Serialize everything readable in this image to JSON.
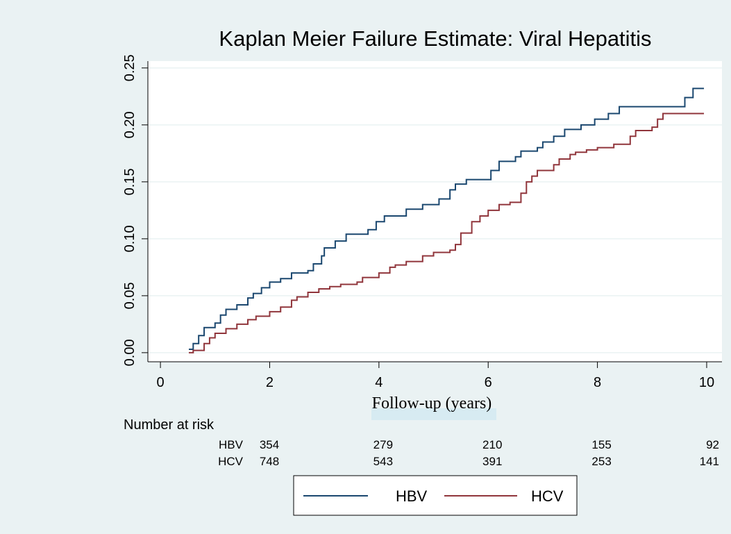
{
  "chart_data": {
    "type": "line",
    "step": true,
    "title": "Kaplan Meier Failure Estimate: Viral Hepatitis",
    "x_label": "Follow-up (years)",
    "xlim": [
      -0.23,
      10.28
    ],
    "ylim": [
      -0.008,
      0.256
    ],
    "xticks": [
      0,
      2,
      4,
      6,
      8,
      10
    ],
    "yticks": [
      {
        "value": 0,
        "label": "0.00"
      },
      {
        "value": 0.05,
        "label": "0.05"
      },
      {
        "value": 0.1,
        "label": "0.10"
      },
      {
        "value": 0.15,
        "label": "0.15"
      },
      {
        "value": 0.2,
        "label": "0.20"
      },
      {
        "value": 0.25,
        "label": "0.25"
      }
    ],
    "grid": true,
    "series": [
      {
        "name": "HBV",
        "color": "#1a476f",
        "x": [
          0.52,
          0.6,
          0.7,
          0.8,
          1.0,
          1.1,
          1.2,
          1.4,
          1.6,
          1.7,
          1.85,
          2.0,
          2.2,
          2.4,
          2.7,
          2.8,
          2.95,
          3.0,
          3.2,
          3.4,
          3.8,
          3.95,
          4.1,
          4.5,
          4.8,
          5.1,
          5.3,
          5.4,
          5.6,
          6.05,
          6.2,
          6.5,
          6.6,
          6.9,
          7.0,
          7.2,
          7.4,
          7.7,
          7.95,
          8.2,
          8.4,
          9.6,
          9.75,
          9.95
        ],
        "values": [
          0.003,
          0.008,
          0.015,
          0.022,
          0.026,
          0.033,
          0.038,
          0.042,
          0.048,
          0.052,
          0.057,
          0.062,
          0.065,
          0.07,
          0.072,
          0.078,
          0.085,
          0.092,
          0.098,
          0.104,
          0.108,
          0.115,
          0.12,
          0.126,
          0.13,
          0.135,
          0.143,
          0.148,
          0.152,
          0.16,
          0.168,
          0.172,
          0.177,
          0.18,
          0.185,
          0.19,
          0.196,
          0.2,
          0.205,
          0.21,
          0.216,
          0.224,
          0.232,
          0.232
        ]
      },
      {
        "name": "HCV",
        "color": "#90353b",
        "x": [
          0.52,
          0.6,
          0.8,
          0.9,
          1.0,
          1.2,
          1.4,
          1.6,
          1.75,
          2.0,
          2.2,
          2.4,
          2.5,
          2.7,
          2.9,
          3.1,
          3.3,
          3.6,
          3.7,
          4.0,
          4.2,
          4.3,
          4.5,
          4.8,
          5.0,
          5.3,
          5.4,
          5.5,
          5.7,
          5.85,
          6.0,
          6.2,
          6.4,
          6.6,
          6.7,
          6.8,
          6.9,
          7.2,
          7.3,
          7.5,
          7.6,
          7.8,
          8.0,
          8.3,
          8.6,
          8.7,
          9.0,
          9.1,
          9.2,
          9.95
        ],
        "values": [
          0.0,
          0.002,
          0.008,
          0.013,
          0.017,
          0.021,
          0.025,
          0.029,
          0.032,
          0.036,
          0.04,
          0.046,
          0.049,
          0.053,
          0.056,
          0.058,
          0.06,
          0.062,
          0.066,
          0.07,
          0.075,
          0.077,
          0.08,
          0.085,
          0.088,
          0.09,
          0.095,
          0.105,
          0.115,
          0.12,
          0.125,
          0.13,
          0.132,
          0.14,
          0.15,
          0.155,
          0.16,
          0.165,
          0.17,
          0.174,
          0.176,
          0.178,
          0.18,
          0.183,
          0.19,
          0.195,
          0.198,
          0.205,
          0.21,
          0.21
        ]
      }
    ],
    "risk_table": {
      "title": "Number at risk",
      "rows": [
        {
          "name": "HBV",
          "values": [
            354,
            279,
            210,
            155,
            92
          ]
        },
        {
          "name": "HCV",
          "values": [
            748,
            543,
            391,
            253,
            141
          ]
        }
      ]
    }
  }
}
